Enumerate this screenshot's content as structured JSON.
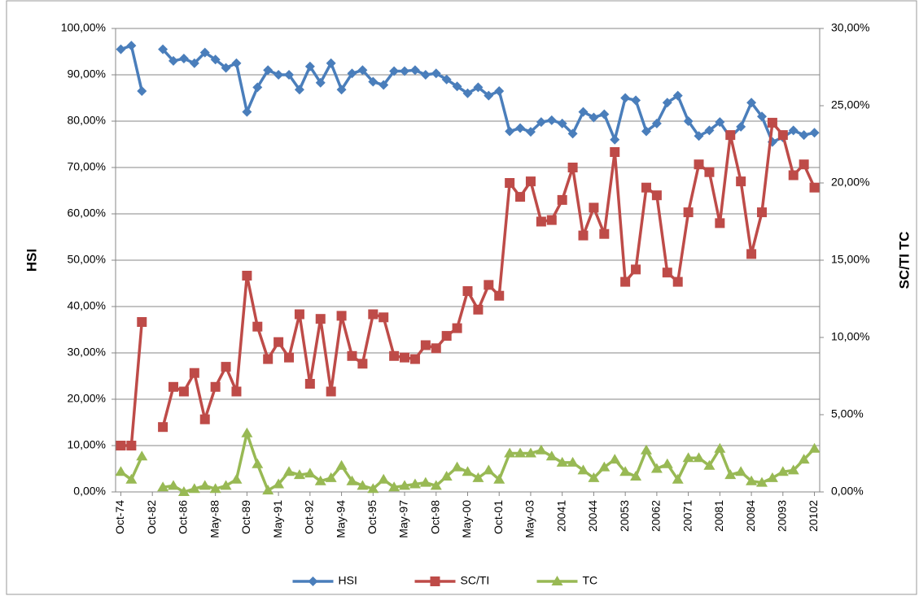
{
  "chart_data": {
    "type": "line",
    "y_label": "HSI",
    "y2_label": "SC/TI TC",
    "categories": [
      "Oct-74",
      null,
      null,
      "Oct-82",
      null,
      null,
      "Oct-86",
      null,
      null,
      "May-88",
      null,
      null,
      "Oct-89",
      null,
      null,
      "May-91",
      null,
      null,
      "Oct-92",
      null,
      null,
      "May-94",
      null,
      null,
      "Oct-95",
      null,
      null,
      "May-97",
      null,
      null,
      "Oct-98",
      null,
      null,
      "May-00",
      null,
      null,
      "Oct-01",
      null,
      null,
      "May-03",
      null,
      null,
      "20041",
      null,
      null,
      "20044",
      null,
      null,
      "20053",
      null,
      null,
      "20062",
      null,
      null,
      "20071",
      null,
      null,
      "20081",
      null,
      null,
      "20084",
      null,
      null,
      "20093",
      null,
      null,
      "20102"
    ],
    "ylim": [
      0,
      100
    ],
    "yticks": [
      {
        "value": 0,
        "label": "0,00%"
      },
      {
        "value": 10,
        "label": "10,00%"
      },
      {
        "value": 20,
        "label": "20,00%"
      },
      {
        "value": 30,
        "label": "30,00%"
      },
      {
        "value": 40,
        "label": "40,00%"
      },
      {
        "value": 50,
        "label": "50,00%"
      },
      {
        "value": 60,
        "label": "60,00%"
      },
      {
        "value": 70,
        "label": "70,00%"
      },
      {
        "value": 80,
        "label": "80,00%"
      },
      {
        "value": 90,
        "label": "90,00%"
      },
      {
        "value": 100,
        "label": "100,00%"
      }
    ],
    "y2lim": [
      0,
      30
    ],
    "y2ticks": [
      {
        "value": 0,
        "label": "0,00%"
      },
      {
        "value": 5,
        "label": "5,00%"
      },
      {
        "value": 10,
        "label": "10,00%"
      },
      {
        "value": 15,
        "label": "15,00%"
      },
      {
        "value": 20,
        "label": "20,00%"
      },
      {
        "value": 25,
        "label": "25,00%"
      },
      {
        "value": 30,
        "label": "30,00%"
      }
    ],
    "grid": true,
    "legend": "bottom",
    "series": [
      {
        "name": "HSI",
        "color": "#4a7ebb",
        "marker": "diamond",
        "values": [
          95.5,
          96.3,
          86.5,
          null,
          95.5,
          93,
          93.5,
          92.5,
          94.8,
          93.3,
          91.5,
          92.5,
          82,
          87.3,
          91,
          90,
          90,
          86.8,
          91.8,
          88.3,
          92.5,
          86.8,
          90.3,
          91,
          88.5,
          87.8,
          90.8,
          90.8,
          91,
          90,
          90.3,
          89,
          87.5,
          86,
          87.3,
          85.5,
          86.5,
          77.8,
          78.5,
          77.7,
          79.8,
          80.2,
          79.5,
          77.3,
          82,
          80.8,
          81.5,
          76,
          85,
          84.5,
          77.8,
          79.5,
          84,
          85.5,
          80,
          76.8,
          78,
          79.8,
          76.5,
          78.8,
          84,
          81,
          75.5,
          76.5,
          78,
          77,
          77.5
        ]
      },
      {
        "name": "SC/TI",
        "color": "#be4b48",
        "marker": "square",
        "axis": "y2",
        "values": [
          3.0,
          3.0,
          11.0,
          null,
          4.2,
          6.8,
          6.5,
          7.7,
          4.7,
          6.8,
          8.1,
          6.5,
          14.0,
          10.7,
          8.6,
          9.7,
          8.7,
          11.5,
          7.0,
          11.2,
          6.5,
          11.4,
          8.8,
          8.3,
          11.5,
          11.3,
          8.8,
          8.7,
          8.6,
          9.5,
          9.3,
          10.1,
          10.6,
          13.0,
          11.8,
          13.4,
          12.7,
          20.0,
          19.1,
          20.1,
          17.5,
          17.6,
          18.9,
          21.0,
          16.6,
          18.4,
          16.7,
          22.0,
          13.6,
          14.4,
          19.7,
          19.2,
          14.2,
          13.6,
          18.1,
          21.2,
          20.7,
          17.4,
          23.1,
          20.1,
          15.4,
          18.1,
          23.9,
          23.1,
          20.5,
          21.2,
          19.7
        ]
      },
      {
        "name": "TC",
        "color": "#98b954",
        "marker": "triangle",
        "axis": "y2",
        "values": [
          1.3,
          0.8,
          2.3,
          null,
          0.3,
          0.4,
          0.0,
          0.2,
          0.4,
          0.2,
          0.4,
          0.8,
          3.8,
          1.8,
          0.1,
          0.5,
          1.3,
          1.1,
          1.2,
          0.7,
          0.9,
          1.7,
          0.7,
          0.4,
          0.2,
          0.8,
          0.3,
          0.4,
          0.5,
          0.6,
          0.4,
          1.0,
          1.6,
          1.3,
          0.9,
          1.4,
          0.8,
          2.5,
          2.5,
          2.5,
          2.7,
          2.3,
          1.9,
          1.9,
          1.4,
          0.9,
          1.6,
          2.1,
          1.3,
          1.0,
          2.7,
          1.5,
          1.8,
          0.8,
          2.2,
          2.2,
          1.7,
          2.8,
          1.1,
          1.3,
          0.7,
          0.6,
          0.9,
          1.3,
          1.4,
          2.1,
          2.8
        ]
      }
    ]
  }
}
